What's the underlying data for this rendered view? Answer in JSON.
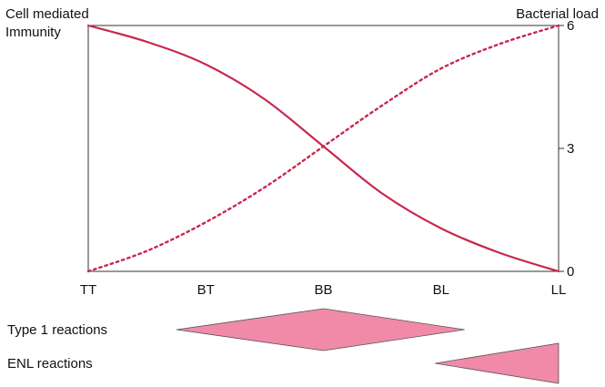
{
  "chart_data": {
    "type": "line",
    "left_axis_title": [
      "Cell mediated",
      "Immunity"
    ],
    "right_axis_title": "Bacterial load",
    "categories": [
      "TT",
      "BT",
      "BB",
      "BL",
      "LL"
    ],
    "right_ticks": [
      "0",
      "3",
      "6"
    ],
    "ylim": [
      0,
      6
    ],
    "series": [
      {
        "key": "cell_mediated_immunity",
        "style": "solid",
        "color": "#c8284e",
        "x": [
          0,
          0.5,
          1,
          1.5,
          2,
          2.5,
          3,
          3.5,
          4
        ],
        "values": [
          6,
          5.6,
          5.05,
          4.2,
          3.05,
          1.9,
          1.05,
          0.45,
          0
        ]
      },
      {
        "key": "bacterial_load",
        "style": "dotted",
        "color": "#c8284e",
        "x": [
          0,
          0.5,
          1,
          1.5,
          2,
          2.5,
          3,
          3.5,
          4
        ],
        "values": [
          0,
          0.5,
          1.2,
          2.05,
          3.05,
          4.05,
          4.95,
          5.55,
          6
        ]
      }
    ],
    "reactions": [
      {
        "key": "type1",
        "label": "Type 1 reactions",
        "shape": "diamond",
        "start": 0.75,
        "peak": 2.0,
        "end": 3.2,
        "color": "#f08aa8"
      },
      {
        "key": "enl",
        "label": "ENL reactions",
        "shape": "wedge",
        "start": 2.95,
        "end": 4.0,
        "color": "#f08aa8"
      }
    ],
    "grid": false,
    "legend": "none"
  }
}
